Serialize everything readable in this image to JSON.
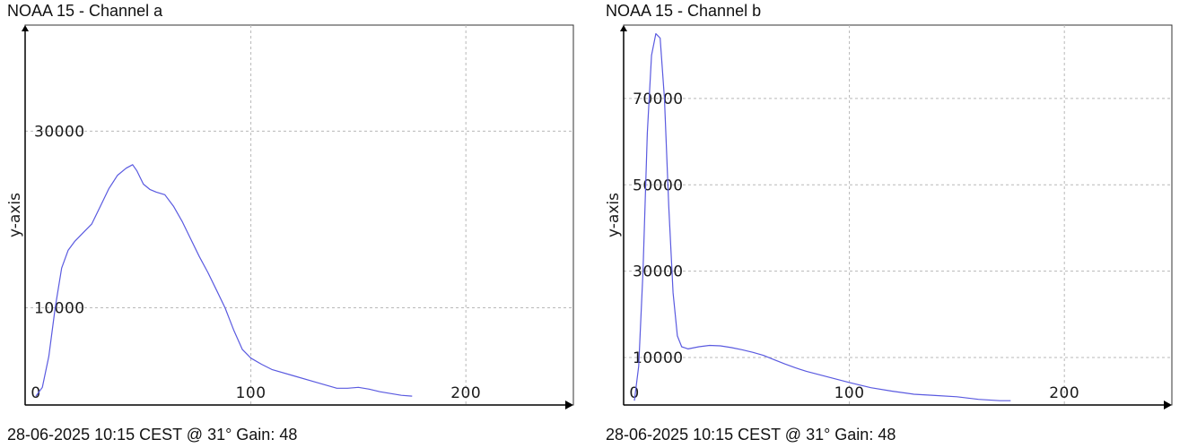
{
  "colors": {
    "series": "#5a5ae0",
    "grid": "#b8b8b8",
    "axis": "#000000",
    "frame": "#333333",
    "background": "#ffffff"
  },
  "chart_data": [
    {
      "type": "line",
      "title": "NOAA 15 - Channel a",
      "footer": "28-06-2025 10:15 CEST @ 31° Gain: 48",
      "xlabel": "",
      "ylabel": "y-axis",
      "xlim": [
        -5,
        250
      ],
      "ylim": [
        -1000,
        42000
      ],
      "x_ticks": [
        0,
        100,
        200
      ],
      "y_ticks": [
        10000,
        30000
      ],
      "grid": true,
      "series": [
        {
          "x": [
            0,
            3,
            6,
            9,
            12,
            15,
            18,
            22,
            26,
            30,
            34,
            38,
            42,
            45,
            47,
            50,
            53,
            56,
            60,
            64,
            68,
            72,
            76,
            80,
            84,
            88,
            92,
            96,
            100,
            105,
            110,
            120,
            130,
            140,
            145,
            150,
            155,
            160,
            165,
            170,
            175
          ],
          "y": [
            0,
            1000,
            4500,
            10000,
            14500,
            16500,
            17500,
            18500,
            19500,
            21500,
            23500,
            25000,
            25800,
            26200,
            25500,
            24000,
            23400,
            23100,
            22800,
            21500,
            19800,
            17800,
            15800,
            14000,
            12000,
            10000,
            7500,
            5300,
            4300,
            3600,
            3000,
            2300,
            1600,
            900,
            900,
            1000,
            800,
            500,
            300,
            100,
            0
          ]
        }
      ]
    },
    {
      "type": "line",
      "title": "NOAA 15 - Channel b",
      "footer": "28-06-2025 10:15 CEST @ 31° Gain: 48",
      "xlabel": "",
      "ylabel": "y-axis",
      "xlim": [
        -5,
        250
      ],
      "ylim": [
        -1000,
        87000
      ],
      "x_ticks": [
        0,
        100,
        200
      ],
      "y_ticks": [
        10000,
        30000,
        50000,
        70000
      ],
      "grid": true,
      "series": [
        {
          "x": [
            0,
            2,
            4,
            6,
            8,
            10,
            12,
            14,
            16,
            18,
            20,
            22,
            25,
            30,
            35,
            40,
            45,
            50,
            55,
            60,
            65,
            70,
            75,
            80,
            90,
            100,
            110,
            120,
            130,
            140,
            150,
            160,
            170,
            175
          ],
          "y": [
            0,
            8000,
            30000,
            62000,
            80000,
            85000,
            84000,
            70000,
            45000,
            25000,
            15000,
            12500,
            12000,
            12500,
            12800,
            12700,
            12300,
            11800,
            11200,
            10500,
            9500,
            8500,
            7600,
            6800,
            5500,
            4200,
            3000,
            2200,
            1500,
            1200,
            900,
            300,
            0,
            0
          ]
        }
      ]
    }
  ]
}
